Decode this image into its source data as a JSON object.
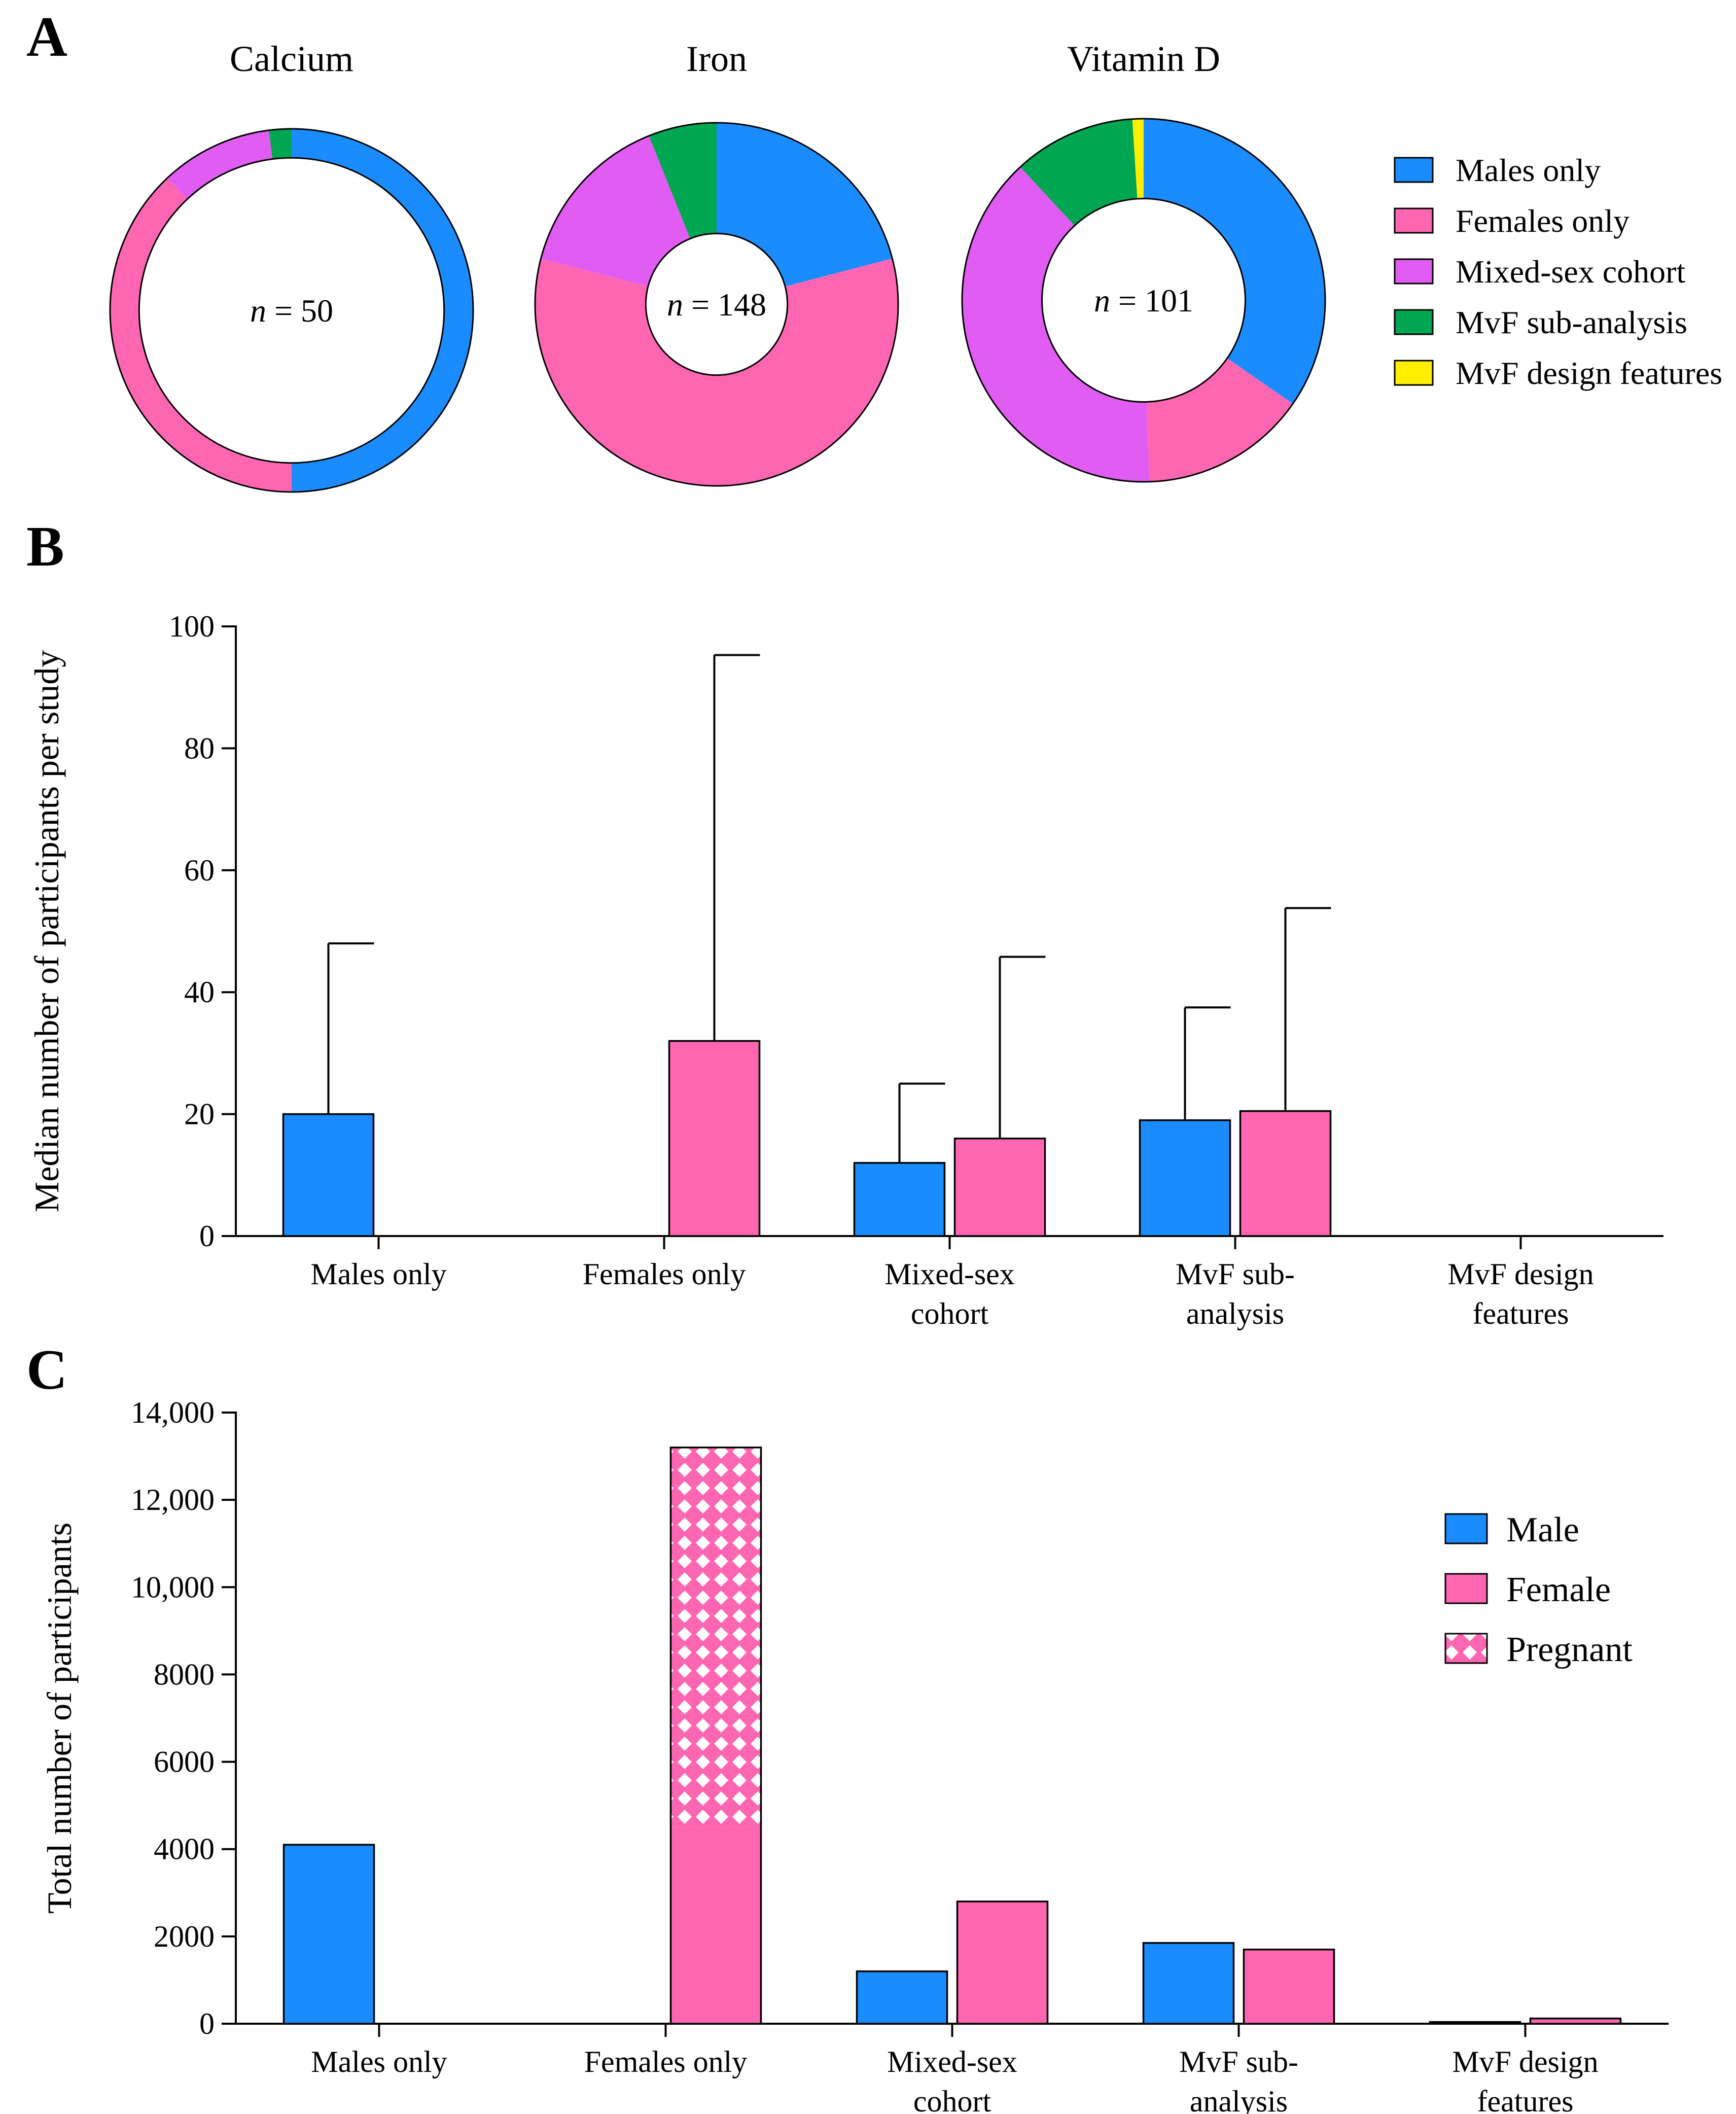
{
  "colors": {
    "males_only": "#1a8cff",
    "females_only": "#ff66b2",
    "mixed_sex": "#e05cf2",
    "mvf_sub": "#00a651",
    "mvf_design": "#ffee00",
    "male": "#1a8cff",
    "female": "#ff66b2",
    "pregnant": "#ff66b2"
  },
  "chart_data": [
    {
      "panel": "A",
      "type": "pie",
      "donuts": [
        {
          "title": "Calcium",
          "n_label": "n",
          "n_value": "= 50",
          "hole": "large",
          "slices": [
            {
              "name": "Males only",
              "value": 25
            },
            {
              "name": "Females only",
              "value": 19
            },
            {
              "name": "Mixed-sex cohort",
              "value": 5
            },
            {
              "name": "MvF sub-analysis",
              "value": 1
            },
            {
              "name": "MvF design features",
              "value": 0
            }
          ]
        },
        {
          "title": "Iron",
          "n_label": "n",
          "n_value": "= 148",
          "hole": "small",
          "slices": [
            {
              "name": "Males only",
              "value": 31
            },
            {
              "name": "Females only",
              "value": 86
            },
            {
              "name": "Mixed-sex cohort",
              "value": 22
            },
            {
              "name": "MvF sub-analysis",
              "value": 9
            },
            {
              "name": "MvF design features",
              "value": 0
            }
          ]
        },
        {
          "title": "Vitamin D",
          "n_label": "n",
          "n_value": "= 101",
          "hole": "medium",
          "slices": [
            {
              "name": "Males only",
              "value": 35
            },
            {
              "name": "Females only",
              "value": 15
            },
            {
              "name": "Mixed-sex cohort",
              "value": 39
            },
            {
              "name": "MvF sub-analysis",
              "value": 11
            },
            {
              "name": "MvF design features",
              "value": 1
            }
          ]
        }
      ],
      "legend": [
        "Males only",
        "Females only",
        "Mixed-sex cohort",
        "MvF sub-analysis",
        "MvF design features"
      ]
    },
    {
      "panel": "B",
      "type": "bar",
      "ylabel": "Median number of participants per study",
      "ylim": [
        0,
        100
      ],
      "yticks": [
        0,
        20,
        40,
        60,
        80,
        100
      ],
      "categories": [
        "Males only",
        "Females only",
        "Mixed-sex cohort",
        "MvF sub-analysis",
        "MvF design features"
      ],
      "category_lines": [
        [
          "Males only"
        ],
        [
          "Females only"
        ],
        [
          "Mixed-sex",
          "cohort"
        ],
        [
          "MvF sub-",
          "analysis"
        ],
        [
          "MvF design",
          "features"
        ]
      ],
      "series": [
        {
          "name": "Male",
          "values": [
            20,
            0,
            12,
            19,
            0
          ],
          "error_upper": [
            48,
            0,
            25,
            37.5,
            0
          ]
        },
        {
          "name": "Female",
          "values": [
            0,
            32,
            16,
            20.5,
            0
          ],
          "error_upper": [
            0,
            95.3,
            45.8,
            53.8,
            0
          ]
        }
      ]
    },
    {
      "panel": "C",
      "type": "bar",
      "stacked_overlay": true,
      "ylabel": "Total number of participants",
      "ylim": [
        0,
        14000
      ],
      "yticks": [
        0,
        2000,
        4000,
        6000,
        8000,
        10000,
        12000,
        14000
      ],
      "ytick_labels": [
        "0",
        "2000",
        "4000",
        "6000",
        "8000",
        "10,000",
        "12,000",
        "14,000"
      ],
      "categories": [
        "Males only",
        "Females only",
        "Mixed-sex cohort",
        "MvF sub-analysis",
        "MvF design features"
      ],
      "category_lines": [
        [
          "Males only"
        ],
        [
          "Females only"
        ],
        [
          "Mixed-sex",
          "cohort"
        ],
        [
          "MvF sub-",
          "analysis"
        ],
        [
          "MvF design",
          "features"
        ]
      ],
      "series": [
        {
          "name": "Male",
          "values": [
            4100,
            0,
            1200,
            1850,
            40
          ]
        },
        {
          "name": "Female",
          "values": [
            0,
            4500,
            2800,
            1700,
            120
          ]
        },
        {
          "name": "Pregnant",
          "values": [
            0,
            8700,
            0,
            0,
            0
          ]
        }
      ],
      "legend": [
        "Male",
        "Female",
        "Pregnant"
      ],
      "legend_position": "top-right"
    }
  ],
  "labels": {
    "panel_a": "A",
    "panel_b": "B",
    "panel_c": "C"
  }
}
